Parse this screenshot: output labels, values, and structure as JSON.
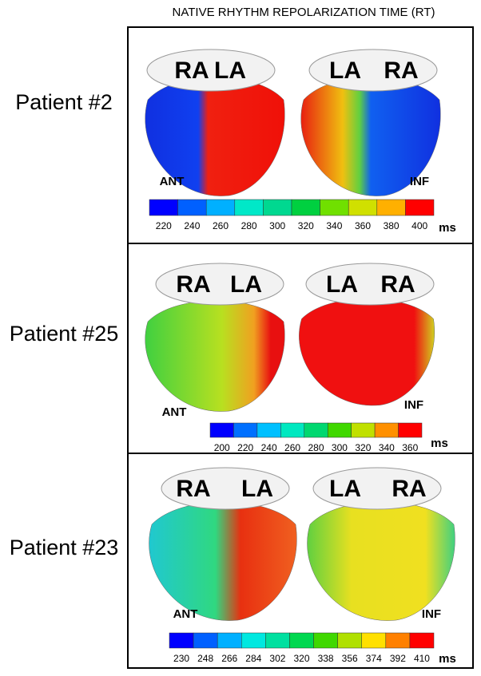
{
  "title": "NATIVE RHYTHM REPOLARIZATION TIME (RT)",
  "panels": [
    {
      "patient": "Patient #2",
      "left_atria": [
        "RA",
        "LA"
      ],
      "right_atria": [
        "LA",
        "RA"
      ],
      "left_view": "ANT",
      "right_view": "INF",
      "colorbar": {
        "ticks": [
          220,
          240,
          260,
          280,
          300,
          320,
          340,
          360,
          380,
          400
        ],
        "unit": "ms",
        "colors": [
          "#0000ff",
          "#0060ff",
          "#00b0ff",
          "#00e8c8",
          "#00d890",
          "#00d040",
          "#70e000",
          "#d0e000",
          "#ffb000",
          "#ff0000"
        ]
      }
    },
    {
      "patient": "Patient #25",
      "left_atria": [
        "RA",
        "LA"
      ],
      "right_atria": [
        "LA",
        "RA"
      ],
      "left_view": "ANT",
      "right_view": "INF",
      "colorbar": {
        "ticks": [
          200,
          220,
          240,
          260,
          280,
          300,
          320,
          340,
          360
        ],
        "unit": "ms",
        "colors": [
          "#0000ff",
          "#0070ff",
          "#00c0ff",
          "#00e8c0",
          "#00d870",
          "#40d800",
          "#c0e000",
          "#ff9000",
          "#ff0000"
        ]
      }
    },
    {
      "patient": "Patient #23",
      "left_atria": [
        "RA",
        "LA"
      ],
      "right_atria": [
        "LA",
        "RA"
      ],
      "left_view": "ANT",
      "right_view": "INF",
      "colorbar": {
        "ticks": [
          230,
          248,
          266,
          284,
          302,
          320,
          338,
          356,
          374,
          392,
          410
        ],
        "unit": "ms",
        "colors": [
          "#0000ff",
          "#0060ff",
          "#00b0ff",
          "#00e8e0",
          "#00e0a0",
          "#00d850",
          "#40d800",
          "#b0e000",
          "#ffe000",
          "#ff8000",
          "#ff0000"
        ]
      }
    }
  ]
}
